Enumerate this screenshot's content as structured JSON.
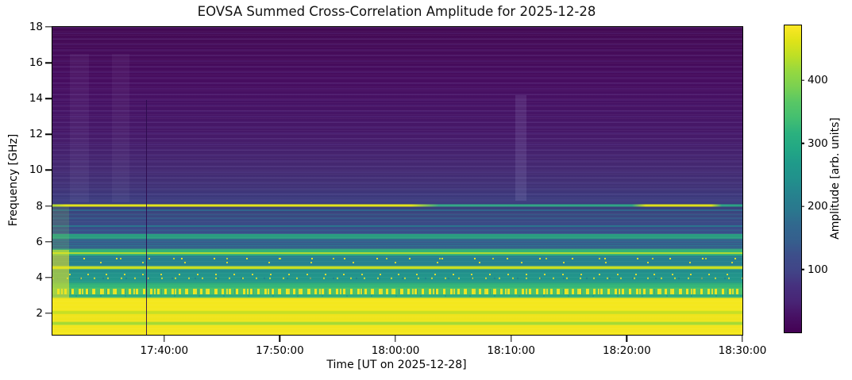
{
  "chart_data": {
    "type": "heatmap",
    "title": "EOVSA Summed Cross-Correlation Amplitude for 2025-12-28",
    "xlabel": "Time [UT on 2025-12-28]",
    "ylabel": "Frequency [GHz]",
    "x_start": "17:30:20",
    "x_end": "18:30:00",
    "x_ticks": [
      "17:40:00",
      "17:50:00",
      "18:00:00",
      "18:10:00",
      "18:20:00",
      "18:30:00"
    ],
    "y_ticks": [
      18,
      16,
      14,
      12,
      10,
      8,
      6,
      4,
      2
    ],
    "y_range_ghz": [
      0.8,
      18
    ],
    "colormap": "viridis",
    "grid": false,
    "colorbar": {
      "label": "Amplitude [arb. units]",
      "ticks": [
        100,
        200,
        300,
        400
      ],
      "vmin": 0,
      "vmax": 487,
      "viridis_stops": [
        [
          0,
          "#440154"
        ],
        [
          0.05,
          "#471063"
        ],
        [
          0.1,
          "#482475"
        ],
        [
          0.15,
          "#46307e"
        ],
        [
          0.2,
          "#414487"
        ],
        [
          0.25,
          "#3d4e8a"
        ],
        [
          0.3,
          "#355f8d"
        ],
        [
          0.35,
          "#31688e"
        ],
        [
          0.4,
          "#2a788e"
        ],
        [
          0.45,
          "#26828e"
        ],
        [
          0.5,
          "#21918c"
        ],
        [
          0.55,
          "#1f9a8a"
        ],
        [
          0.6,
          "#22a884"
        ],
        [
          0.65,
          "#2cb17e"
        ],
        [
          0.7,
          "#44bf70"
        ],
        [
          0.75,
          "#58c765"
        ],
        [
          0.8,
          "#7ad151"
        ],
        [
          0.85,
          "#95d840"
        ],
        [
          0.9,
          "#bddf26"
        ],
        [
          0.95,
          "#dfe318"
        ],
        [
          1,
          "#fde725"
        ]
      ]
    },
    "bands_summary": [
      {
        "freq_ghz": "9–18",
        "amplitude_arb": "15–60",
        "note": "dark purple background with faint horizontal striations"
      },
      {
        "freq_ghz": "8.0",
        "amplitude_arb": "230–460",
        "note": "narrow bright line; yellow 17:30–18:03 and 18:21–18:27, teal-green elsewhere"
      },
      {
        "freq_ghz": "6.5–8.0",
        "amplitude_arb": "100–160",
        "note": "blue with thin teal lines near 7.8, 7.5, 6.9 GHz"
      },
      {
        "freq_ghz": "6.2–6.4",
        "amplitude_arb": "290",
        "note": "green band"
      },
      {
        "freq_ghz": "5.25–5.5",
        "amplitude_arb": "300–380",
        "note": "bright green band with yellow-green line"
      },
      {
        "freq_ghz": "4.6–5.2",
        "amplitude_arb": "200 (spikes to 480)",
        "note": "teal with sparse yellow RFI speckles"
      },
      {
        "freq_ghz": "4.5–4.6",
        "amplitude_arb": "430",
        "note": "yellow-green line"
      },
      {
        "freq_ghz": "3.6–4.5",
        "amplitude_arb": "210–260",
        "note": "teal with speckled rows near 3.9–4.15 GHz"
      },
      {
        "freq_ghz": "3.05–3.4",
        "amplitude_arb": "300–480",
        "note": "dense yellow RFI speckle band"
      },
      {
        "freq_ghz": "2.1–2.9",
        "amplitude_arb": "470–490",
        "note": "saturated solid yellow"
      },
      {
        "freq_ghz": "0.8–2.1",
        "amplitude_arb": "400–490",
        "note": "yellow with green-yellow rows near 2.0 and 1.4 GHz"
      }
    ],
    "events": [
      {
        "time": "17:38:26",
        "note": "thin dark vertical dropout line below ~13.9 GHz"
      },
      {
        "time": "17:30–17:32",
        "note": "brighter column at start below ~5.5 GHz"
      },
      {
        "time": "18:10–18:11",
        "note": "faint bright vertical streak between ~8.3 and 14 GHz"
      }
    ],
    "render": {
      "gradient_stops": [
        [
          18,
          "#440a54"
        ],
        [
          15.0,
          "#470d60"
        ],
        [
          12.0,
          "#461969"
        ],
        [
          10.0,
          "#442a72"
        ],
        [
          9.0,
          "#403377"
        ],
        [
          8.5,
          "#3d3a7c"
        ],
        [
          8.1,
          "#3b3d7d"
        ],
        [
          7.95,
          "#393f7b"
        ],
        [
          7.55,
          "#3a477f"
        ],
        [
          7.0,
          "#3a4b86"
        ],
        [
          6.45,
          "#394f8a"
        ],
        [
          6.42,
          "#2a9d80"
        ],
        [
          6.18,
          "#2a9d80"
        ],
        [
          6.12,
          "#3a538b"
        ],
        [
          5.65,
          "#35618c"
        ],
        [
          5.55,
          "#31b077"
        ],
        [
          5.26,
          "#35b778"
        ],
        [
          5.2,
          "#27808e"
        ],
        [
          4.65,
          "#26828e"
        ],
        [
          4.62,
          "#c5de23"
        ],
        [
          4.5,
          "#cde11e"
        ],
        [
          4.45,
          "#21918c"
        ],
        [
          3.75,
          "#23988a"
        ],
        [
          3.68,
          "#2fab7d"
        ],
        [
          3.45,
          "#37b878"
        ],
        [
          3.4,
          "#4ac16d"
        ],
        [
          3.06,
          "#44bf70"
        ],
        [
          3.02,
          "#2aa585"
        ],
        [
          2.9,
          "#35b779"
        ],
        [
          2.84,
          "#e8e41c"
        ],
        [
          2.78,
          "#f4e71e"
        ],
        [
          2.16,
          "#f4e71e"
        ],
        [
          2.1,
          "#c6df22"
        ],
        [
          1.98,
          "#c6df22"
        ],
        [
          1.94,
          "#f0e41d"
        ],
        [
          1.55,
          "#efe41c"
        ],
        [
          1.49,
          "#a5da35"
        ],
        [
          1.38,
          "#a5da35"
        ],
        [
          1.32,
          "#f2e61e"
        ],
        [
          0.8,
          "#f4e71e"
        ]
      ],
      "overlays": [
        {
          "kind": "striation",
          "f_hi": 18,
          "f_lo": 8.1,
          "color": "rgba(130,120,205,0.10)",
          "period": 7,
          "line": 2
        },
        {
          "kind": "striation",
          "f_hi": 18,
          "f_lo": 0.8,
          "color": "rgba(255,255,255,0.04)",
          "period": 5,
          "line": 1
        },
        {
          "kind": "vband",
          "t0": "17:31:50",
          "t1": "17:33:30",
          "f_hi": 16.5,
          "f_lo": 8.2,
          "color": "#cfcfef",
          "op": 0.06
        },
        {
          "kind": "vband",
          "t0": "17:35:30",
          "t1": "17:37:00",
          "f_hi": 16.5,
          "f_lo": 8.2,
          "color": "#cfcfef",
          "op": 0.05
        },
        {
          "kind": "vband",
          "t0": "18:10:20",
          "t1": "18:11:20",
          "f_hi": 14.2,
          "f_lo": 8.3,
          "color": "#b8b8e8",
          "op": 0.13
        },
        {
          "kind": "hline",
          "f": 7.78,
          "h": 2,
          "color": "#2f6b8e",
          "op": 0.85
        },
        {
          "kind": "hline",
          "f": 7.5,
          "h": 1.5,
          "color": "#33628d",
          "op": 0.8
        },
        {
          "kind": "hline",
          "f": 7.3,
          "h": 1.5,
          "color": "#33628d",
          "op": 0.7
        },
        {
          "kind": "hline",
          "f": 6.87,
          "h": 2,
          "color": "#2a788e",
          "op": 0.9
        },
        {
          "kind": "hline",
          "f": 6.62,
          "h": 1.5,
          "color": "#2e6d8e",
          "op": 0.7
        },
        {
          "kind": "hline",
          "f": 6.07,
          "h": 1.5,
          "color": "#2e6d8e",
          "op": 0.8
        },
        {
          "kind": "hline",
          "f": 5.92,
          "h": 1.5,
          "color": "#2a788e",
          "op": 0.8
        },
        {
          "kind": "hline",
          "f": 5.78,
          "h": 1.5,
          "color": "#287a8e",
          "op": 0.8
        },
        {
          "kind": "hline",
          "f": 5.38,
          "h": 2,
          "color": "#b8dd2c",
          "op": 0.9
        },
        {
          "kind": "hline",
          "f": 4.35,
          "h": 1.5,
          "color": "#26828e",
          "op": 0.8
        },
        {
          "kind": "hline",
          "f": 3.55,
          "h": 2,
          "color": "#35b779",
          "op": 0.9
        },
        {
          "kind": "seg",
          "f": 8.02,
          "h": 3,
          "stops": [
            [
              "#abd53c",
              0
            ],
            [
              "#e2e31b",
              2
            ],
            [
              "#e2e31b",
              52
            ],
            [
              "#35a887",
              56
            ],
            [
              "#2fa486",
              84
            ],
            [
              "#dde01a",
              86
            ],
            [
              "#dde01a",
              95.5
            ],
            [
              "#2fa486",
              97
            ],
            [
              "#2aa083",
              100
            ]
          ]
        },
        {
          "kind": "speckle",
          "f": 5.05,
          "h": 2,
          "color": "#f4e61e",
          "dash": 2,
          "period": 41,
          "offset": 0,
          "op": 0.95
        },
        {
          "kind": "speckle",
          "f": 5.05,
          "h": 2,
          "color": "#e8e419",
          "dash": 2,
          "period": 67,
          "offset": 20,
          "op": 0.8
        },
        {
          "kind": "speckle",
          "f": 4.85,
          "h": 2,
          "color": "#f4e61e",
          "dash": 2,
          "period": 53,
          "offset": 9,
          "op": 0.85
        },
        {
          "kind": "speckle",
          "f": 4.15,
          "h": 2,
          "color": "#fde725",
          "dash": 2,
          "period": 23,
          "offset": 0,
          "op": 0.85
        },
        {
          "kind": "speckle",
          "f": 3.95,
          "h": 2.5,
          "color": "#fde725",
          "dash": 2,
          "period": 17,
          "offset": 3,
          "op": 0.8
        },
        {
          "kind": "speckle",
          "f": 3.95,
          "h": 2.5,
          "color": "#1f6e8e",
          "dash": 2,
          "period": 29,
          "offset": 7,
          "op": 0.5
        },
        {
          "kind": "speckle",
          "f": 2.97,
          "h": 2,
          "color": "#21918c",
          "dash": 2,
          "period": 31,
          "offset": 0,
          "op": 0.6
        },
        {
          "kind": "noise",
          "f_hi": 3.37,
          "f_lo": 3.04,
          "base": "#4ac16d",
          "layers": [
            {
              "color": "rgba(244,230,30,0.95)",
              "dash": 3,
              "period": 9
            },
            {
              "color": "rgba(253,231,37,0.8)",
              "dash": 2,
              "period": 13
            },
            {
              "color": "rgba(42,120,142,0.45)",
              "dash": 1,
              "period": 23
            }
          ]
        },
        {
          "kind": "vband",
          "t0": "17:30:20",
          "t1": "17:31:45",
          "f_hi": 8.0,
          "f_lo": 5.55,
          "color": "#8fcf5a",
          "op": 0.18
        },
        {
          "kind": "vband",
          "t0": "17:30:20",
          "t1": "17:31:45",
          "f_hi": 5.55,
          "f_lo": 2.84,
          "color": "#f0e422",
          "op": 0.55
        },
        {
          "kind": "vline",
          "t": "17:38:26",
          "f_hi": 13.9,
          "f_lo": 0.8,
          "w": 1.5,
          "color": "#2c0b4e",
          "op": 0.9
        }
      ]
    }
  }
}
